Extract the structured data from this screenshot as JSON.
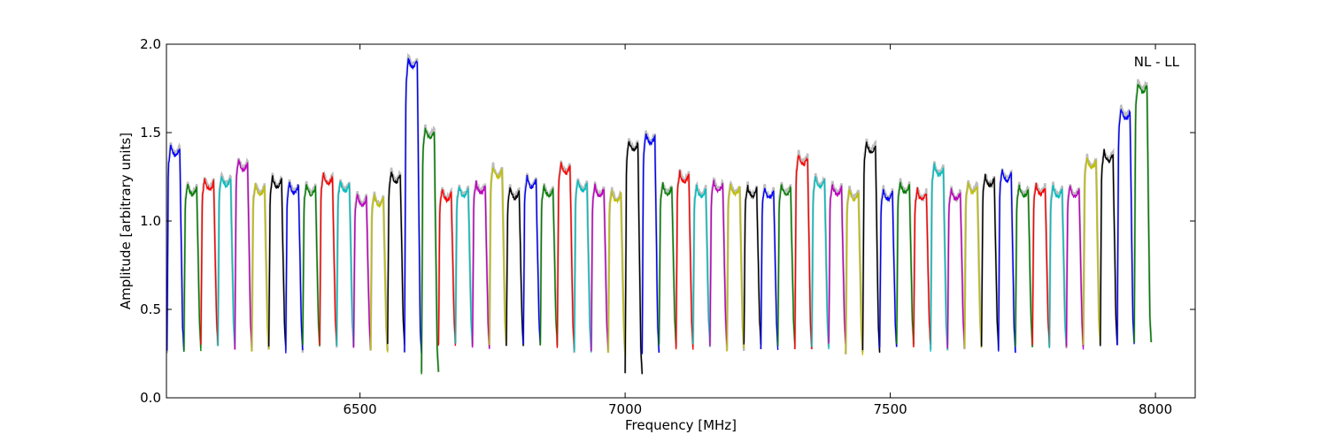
{
  "chart_data": {
    "type": "line",
    "title": "",
    "annotation": "NL - LL",
    "xlabel": "Frequency [MHz]",
    "ylabel": "Amplitude [arbitrary units]",
    "xlim": [
      6135,
      8075
    ],
    "ylim": [
      0.0,
      2.0
    ],
    "xticks": [
      6500,
      7000,
      7500,
      8000
    ],
    "xtick_labels": [
      "6500",
      "7000",
      "7500",
      "8000"
    ],
    "yticks": [
      0.0,
      0.5,
      1.0,
      1.5,
      2.0
    ],
    "ytick_labels": [
      "0.0",
      "0.5",
      "1.0",
      "1.5",
      "2.0"
    ],
    "grid": false,
    "legend": "none",
    "channel_width_mhz": 32,
    "first_channel_start_mhz": 6136,
    "color_cycle": [
      "#0000ff",
      "#008000",
      "#ff0000",
      "#00bfbf",
      "#bf00bf",
      "#bfbf00",
      "#000000"
    ],
    "background_trace_color": "#bdbdbd",
    "channel_peaks": [
      1.45,
      1.23,
      1.26,
      1.28,
      1.37,
      1.23,
      1.27,
      1.24,
      1.23,
      1.29,
      1.25,
      1.17,
      1.17,
      1.3,
      1.95,
      1.55,
      1.2,
      1.22,
      1.24,
      1.33,
      1.21,
      1.27,
      1.22,
      1.35,
      1.25,
      1.22,
      1.19,
      1.48,
      1.52,
      1.23,
      1.3,
      1.22,
      1.25,
      1.23,
      1.22,
      1.21,
      1.23,
      1.4,
      1.27,
      1.23,
      1.2,
      1.47,
      1.2,
      1.24,
      1.2,
      1.34,
      1.2,
      1.24,
      1.28,
      1.31,
      1.22,
      1.23,
      1.22,
      1.22,
      1.38,
      1.42,
      1.66,
      1.81
    ],
    "channel_troughs": [
      0.26,
      0.27,
      0.3,
      0.29,
      0.28,
      0.27,
      0.28,
      0.26,
      0.29,
      0.3,
      0.29,
      0.28,
      0.26,
      0.3,
      0.25,
      0.14,
      0.3,
      0.3,
      0.28,
      0.29,
      0.3,
      0.3,
      0.3,
      0.28,
      0.26,
      0.27,
      0.25,
      0.14,
      0.25,
      0.3,
      0.28,
      0.3,
      0.29,
      0.27,
      0.3,
      0.28,
      0.3,
      0.27,
      0.28,
      0.3,
      0.25,
      0.26,
      0.28,
      0.3,
      0.29,
      0.27,
      0.29,
      0.28,
      0.29,
      0.26,
      0.29,
      0.3,
      0.29,
      0.28,
      0.3,
      0.3,
      0.3,
      0.31
    ]
  }
}
